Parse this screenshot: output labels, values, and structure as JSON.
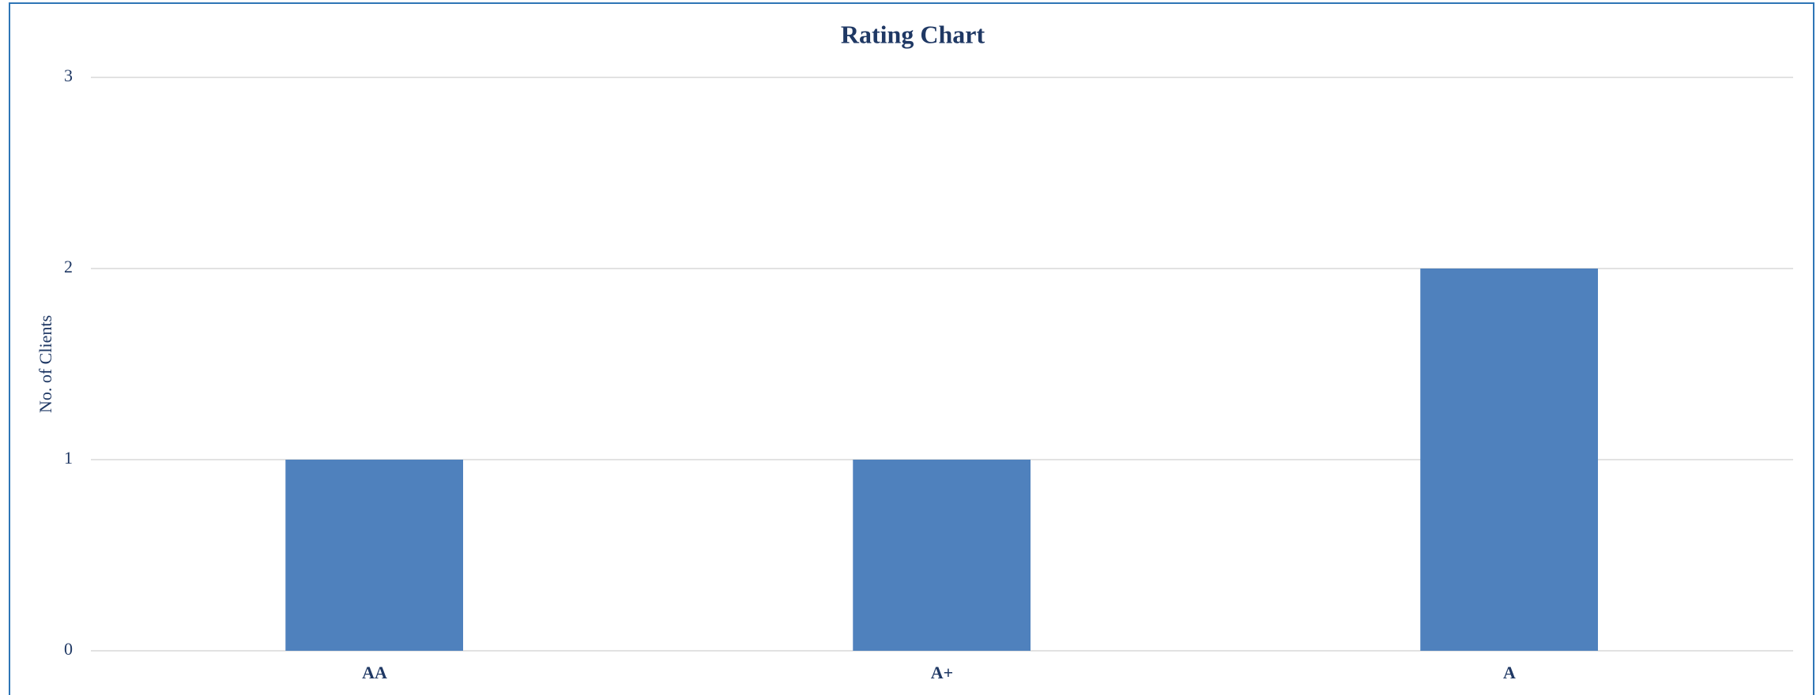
{
  "chart_data": {
    "type": "bar",
    "title": "Rating Chart",
    "y_label": "No. of Clients",
    "categories": [
      "AA",
      "A+",
      "A"
    ],
    "values": [
      1,
      1,
      2
    ],
    "color": "#4f81bd",
    "ylim": [
      0,
      3
    ],
    "yticks": [
      0,
      1,
      2,
      3
    ],
    "grid": true
  }
}
